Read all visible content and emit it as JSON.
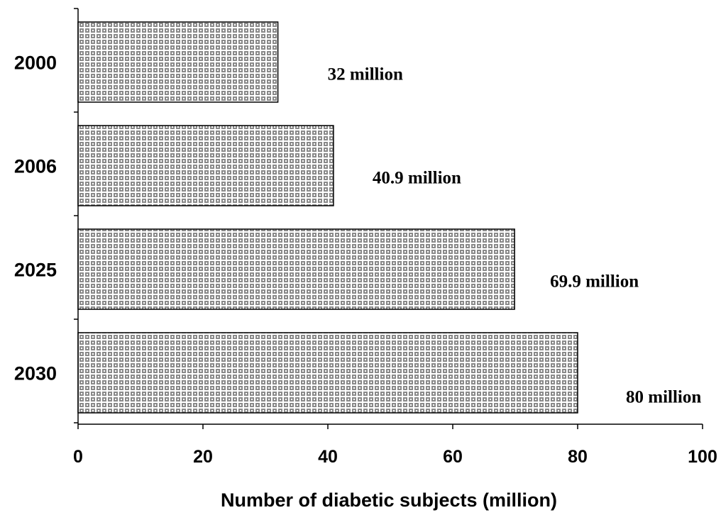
{
  "chart_data": {
    "type": "bar",
    "orientation": "horizontal",
    "categories": [
      "2000",
      "2006",
      "2025",
      "2030"
    ],
    "values": [
      32,
      40.9,
      69.9,
      80
    ],
    "data_labels": [
      "32 million",
      "40.9 million",
      "69.9 million",
      "80 million"
    ],
    "xlabel": "Number of diabetic subjects (million)",
    "ylabel": "",
    "xlim": [
      0,
      100
    ],
    "xticks": [
      "0",
      "20",
      "40",
      "60",
      "80",
      "100"
    ],
    "grid": false,
    "legend": "none",
    "bar_fill": "#8a8a8a",
    "bar_pattern": "crosshatch"
  }
}
